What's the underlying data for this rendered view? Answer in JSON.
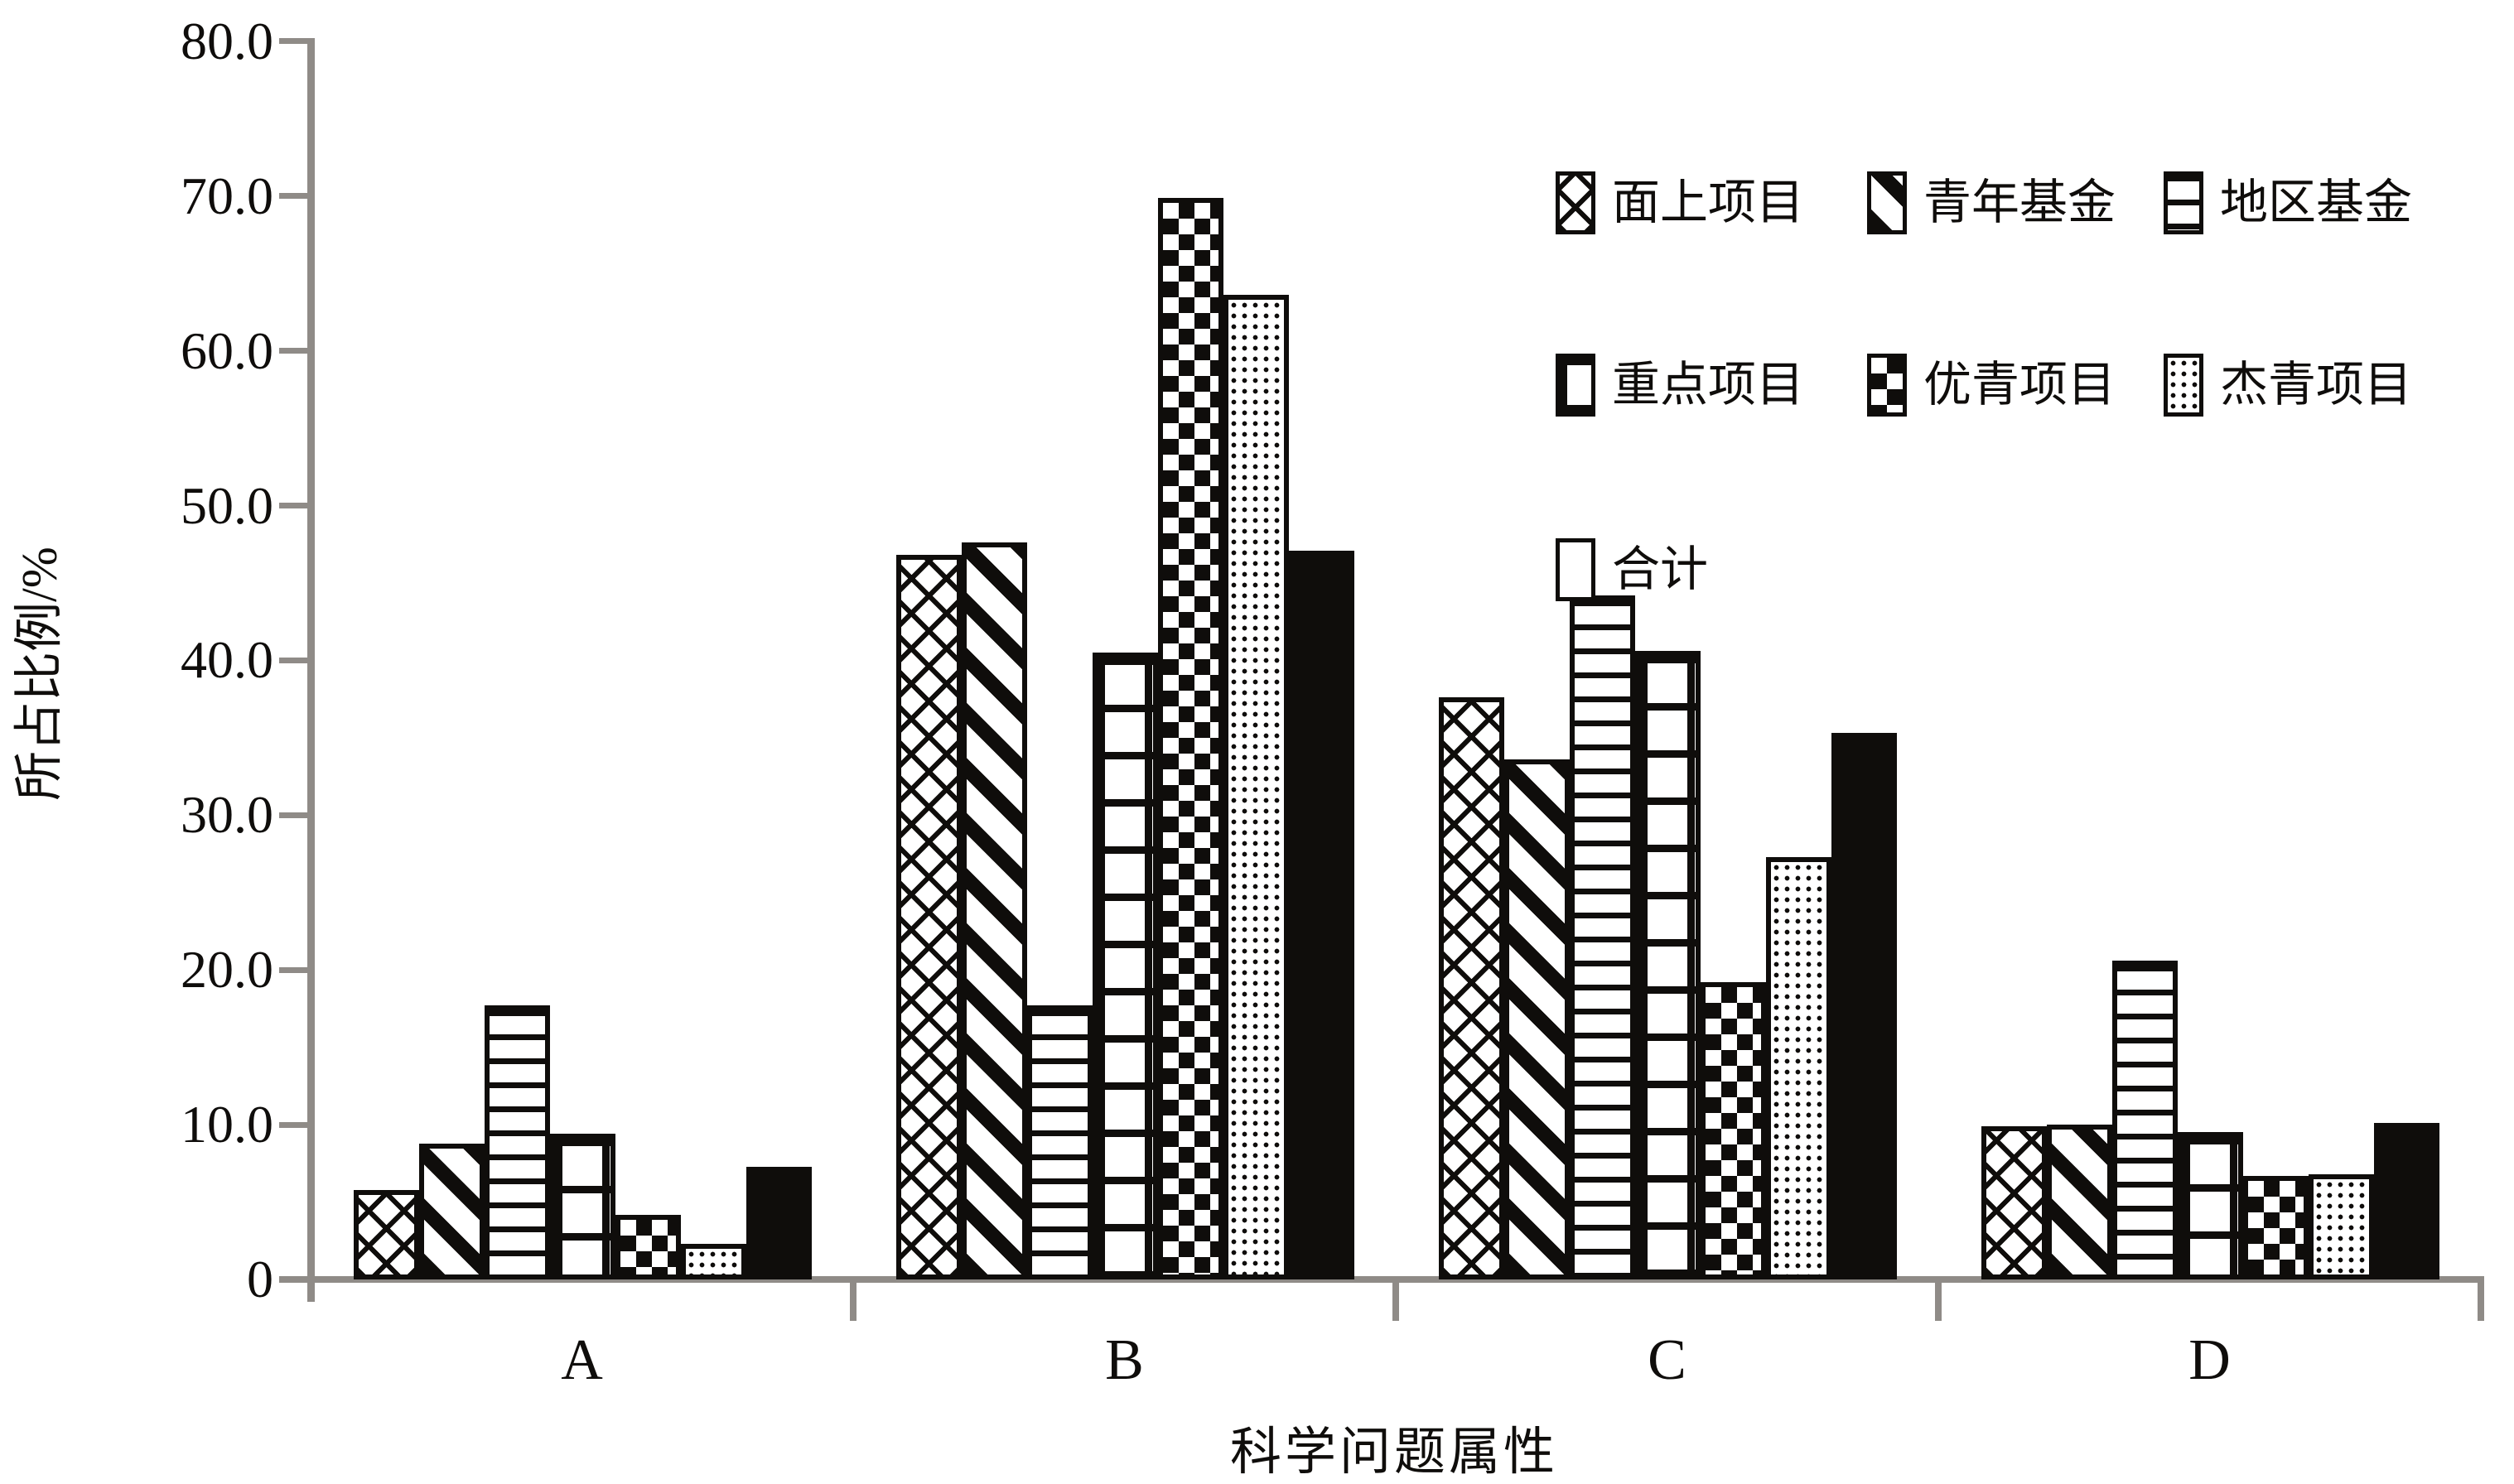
{
  "chart_data": {
    "type": "bar",
    "title": "",
    "xlabel": "科学问题属性",
    "ylabel": "所占比例/%",
    "ylim": [
      0,
      80
    ],
    "ytick_step": 10,
    "grid": "off",
    "legend_position": "top-right",
    "yticks": [
      "80.0",
      "70.0",
      "60.0",
      "50.0",
      "40.0",
      "30.0",
      "20.0",
      "10.0",
      "0"
    ],
    "categories": [
      "A",
      "B",
      "C",
      "D"
    ],
    "series": [
      {
        "name": "面上项目",
        "pattern": "crosshatch",
        "values": [
          5.8,
          46.8,
          37.6,
          9.9
        ]
      },
      {
        "name": "青年基金",
        "pattern": "diagonal-stripes",
        "values": [
          8.8,
          47.6,
          33.6,
          10.0
        ]
      },
      {
        "name": "地区基金",
        "pattern": "horizontal-stripes",
        "values": [
          17.7,
          17.7,
          44.2,
          20.6
        ]
      },
      {
        "name": "重点项目",
        "pattern": "grid",
        "values": [
          9.4,
          40.5,
          40.6,
          9.5
        ]
      },
      {
        "name": "优青项目",
        "pattern": "checkerboard",
        "values": [
          4.2,
          69.9,
          19.2,
          6.7
        ]
      },
      {
        "name": "杰青项目",
        "pattern": "dots",
        "values": [
          2.3,
          63.6,
          27.3,
          6.8
        ]
      },
      {
        "name": "合计",
        "pattern": "solid",
        "values": [
          7.3,
          47.1,
          35.3,
          10.1
        ]
      }
    ],
    "legend_layout_rows": [
      [
        0,
        1,
        2
      ],
      [
        3,
        4,
        5
      ],
      [
        6
      ]
    ],
    "colors": {
      "ink": "#0f0d0b",
      "axis": "#8f8b87",
      "background": "#ffffff"
    }
  }
}
